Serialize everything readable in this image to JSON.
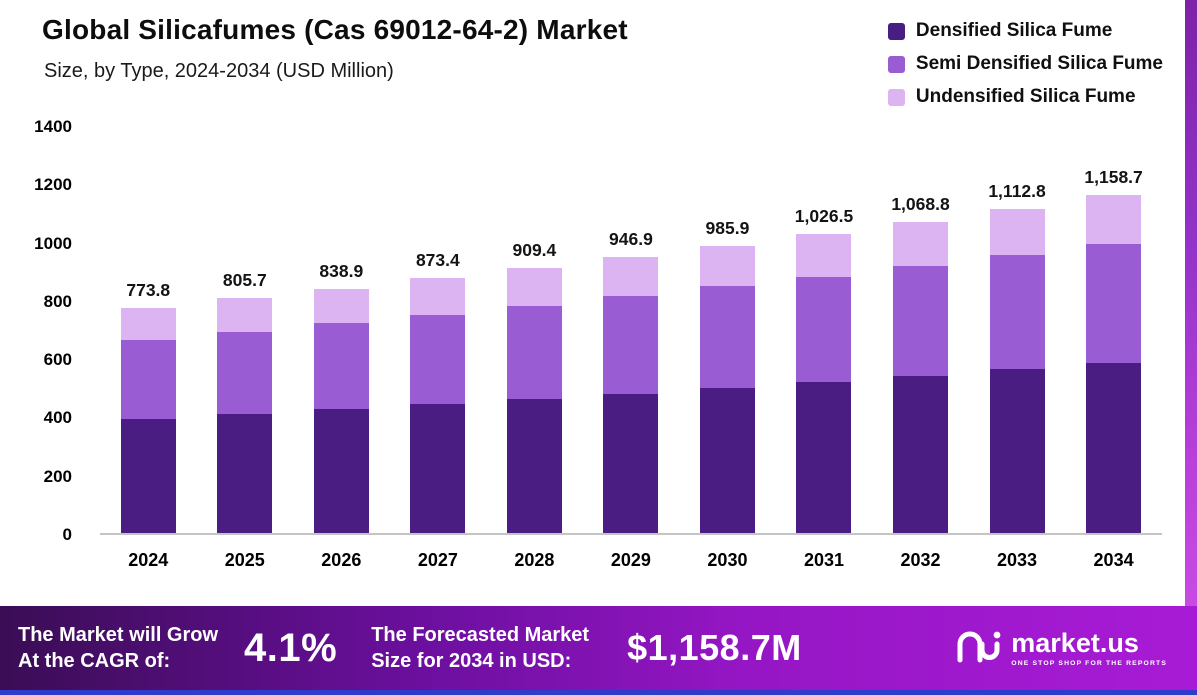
{
  "header": {
    "title": "Global Silicafumes (Cas 69012-64-2) Market",
    "subtitle": "Size, by Type, 2024-2034 (USD Million)"
  },
  "legend": [
    {
      "label": "Densified Silica Fume",
      "color": "#4a1d82"
    },
    {
      "label": "Semi Densified Silica Fume",
      "color": "#9a5cd2"
    },
    {
      "label": "Undensified Silica Fume",
      "color": "#dcb4f2"
    }
  ],
  "chart_data": {
    "type": "bar",
    "stacked": true,
    "title": "Global Silicafumes (Cas 69012-64-2) Market Size, by Type, 2024-2034 (USD Million)",
    "categories": [
      "2024",
      "2025",
      "2026",
      "2027",
      "2028",
      "2029",
      "2030",
      "2031",
      "2032",
      "2033",
      "2034"
    ],
    "series": [
      {
        "name": "Densified Silica Fume",
        "color": "#4a1d82",
        "values": [
          391,
          407,
          424,
          441,
          459,
          478,
          498,
          518,
          539,
          562,
          585
        ]
      },
      {
        "name": "Semi Densified Silica Fume",
        "color": "#9a5cd2",
        "values": [
          273,
          284,
          295,
          308,
          321,
          334,
          348,
          362,
          377,
          392,
          406
        ]
      },
      {
        "name": "Undensified Silica Fume",
        "color": "#dcb4f2",
        "values": [
          109.8,
          114.7,
          119.9,
          124.4,
          129.4,
          134.9,
          139.9,
          146.5,
          152.8,
          158.8,
          167.7
        ]
      }
    ],
    "totals_labels": [
      "773.8",
      "805.7",
      "838.9",
      "873.4",
      "909.4",
      "946.9",
      "985.9",
      "1,026.5",
      "1,068.8",
      "1,112.8",
      "1,158.7"
    ],
    "yticks": [
      0,
      200,
      400,
      600,
      800,
      1000,
      1200,
      1400
    ],
    "ylim": [
      0,
      1400
    ],
    "xlabel": "",
    "ylabel": "",
    "grid": false,
    "legend_position": "top-right"
  },
  "footer": {
    "cagr_label_line1": "The Market will Grow",
    "cagr_label_line2": "At the CAGR of:",
    "cagr_value": "4.1%",
    "forecast_label_line1": "The Forecasted Market",
    "forecast_label_line2": "Size for 2034 in USD:",
    "forecast_value": "$1,158.7M",
    "brand": "market.us",
    "brand_tagline": "ONE STOP SHOP FOR THE REPORTS"
  }
}
